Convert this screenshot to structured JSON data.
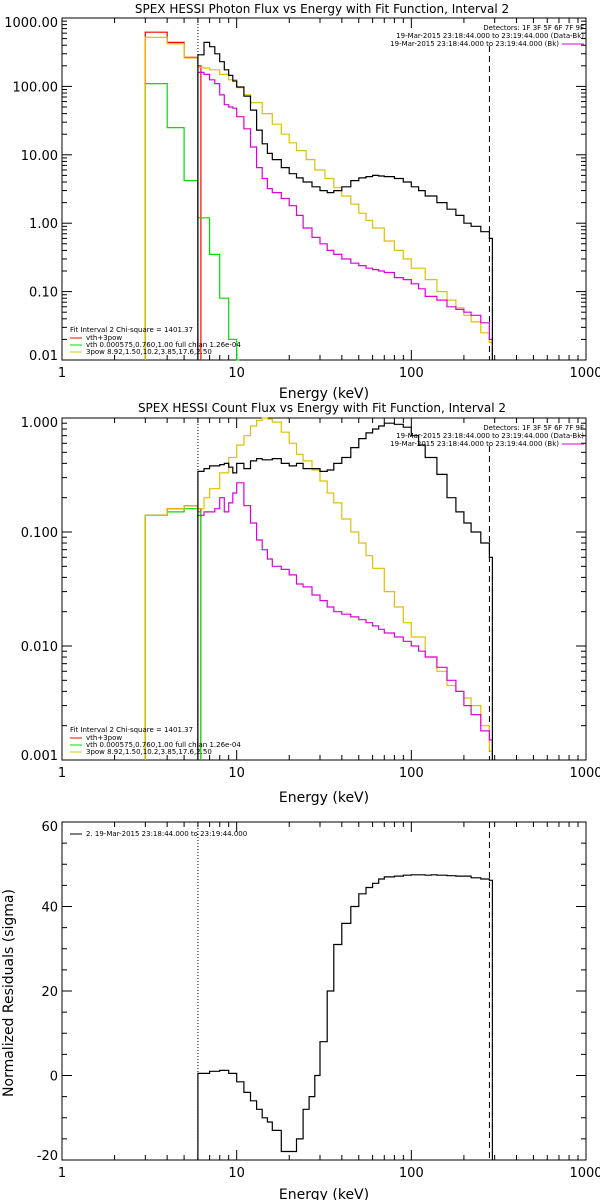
{
  "colors": {
    "background": "#ffffff",
    "data": "#000000",
    "total": "#ff0000",
    "vth": "#00dd00",
    "3pow": "#e0c000",
    "bk": "#dd00dd"
  },
  "chart_data": [
    {
      "type": "line",
      "title": "SPEX HESSI Photon Flux vs Energy with Fit Function, Interval 2",
      "xlabel": "Energy (keV)",
      "ylabel": "",
      "xscale": "log",
      "yscale": "log",
      "xlim": [
        1,
        1000
      ],
      "ylim": [
        0.01,
        1000
      ],
      "xtick_labels": [
        "1",
        "10",
        "100",
        "1000"
      ],
      "ytick_values": [
        0.01,
        0.1,
        1,
        10,
        100,
        1000
      ],
      "ytick_labels": [
        "0.01",
        "0.10",
        "1.00",
        "10.00",
        "100.00",
        "1000.00"
      ],
      "info_right": [
        "Detectors: 1F 3F 5F 6F 7F 9F",
        "19-Mar-2015 23:18:44.000 to 23:19:44.000 (Data-Bk)",
        "19-Mar-2015 23:18:44.000 to 23:19:44.000 (Bk)"
      ],
      "legend": [
        "Fit Interval  2    Chi-square = 1401.37",
        "vth+3pow",
        "vth 0.000575,0.760,1.00  full chian 1.26e-04",
        "3pow 8.92,1.50,10.2,3.85,17.6,2.50"
      ],
      "series": [
        {
          "name": "Data-Bk",
          "color": "#000000",
          "x": [
            6.0,
            6.5,
            7.0,
            7.5,
            8.0,
            8.5,
            9.0,
            9.5,
            10,
            11,
            12,
            13,
            14,
            15,
            16,
            18,
            20,
            22,
            24,
            27,
            30,
            33,
            36,
            40,
            45,
            50,
            55,
            60,
            65,
            70,
            80,
            90,
            100,
            110,
            120,
            140,
            160,
            180,
            200,
            220,
            250,
            280
          ],
          "y": [
            290,
            440,
            380,
            300,
            230,
            175,
            145,
            120,
            98,
            72,
            45,
            23,
            14.5,
            10.5,
            8.5,
            6.5,
            5.3,
            4.6,
            4.0,
            3.4,
            3.0,
            2.8,
            3.0,
            3.4,
            4.2,
            4.6,
            4.8,
            5.0,
            4.9,
            4.8,
            4.5,
            4.0,
            3.4,
            3.0,
            2.5,
            2.0,
            1.6,
            1.3,
            1.0,
            0.9,
            0.75,
            0.6
          ]
        },
        {
          "name": "Bk",
          "color": "#dd00dd",
          "x": [
            6.0,
            6.5,
            7.0,
            7.5,
            8.0,
            8.5,
            9.0,
            9.5,
            10,
            11,
            12,
            13,
            14,
            15,
            16,
            18,
            20,
            22,
            24,
            27,
            30,
            33,
            36,
            40,
            45,
            50,
            55,
            60,
            65,
            70,
            80,
            90,
            100,
            110,
            120,
            140,
            160,
            180,
            200,
            220,
            250,
            280
          ],
          "y": [
            160,
            150,
            125,
            110,
            75,
            54,
            50,
            48,
            36,
            24,
            13,
            6.5,
            4.5,
            3.2,
            2.8,
            2.3,
            1.8,
            1.3,
            0.85,
            0.62,
            0.5,
            0.4,
            0.35,
            0.3,
            0.26,
            0.24,
            0.22,
            0.21,
            0.2,
            0.19,
            0.16,
            0.15,
            0.13,
            0.11,
            0.085,
            0.075,
            0.06,
            0.055,
            0.05,
            0.045,
            0.035,
            0.02
          ]
        },
        {
          "name": "3pow",
          "color": "#e0c000",
          "x": [
            3,
            4,
            5,
            6,
            6.5,
            7,
            8,
            9,
            10,
            11,
            12,
            14,
            16,
            18,
            20,
            22,
            25,
            28,
            32,
            36,
            40,
            45,
            50,
            55,
            60,
            70,
            80,
            90,
            100,
            120,
            140,
            160,
            180,
            200,
            220,
            250,
            280
          ],
          "y": [
            520,
            420,
            260,
            190,
            185,
            175,
            150,
            125,
            96,
            75,
            58,
            40,
            28,
            20,
            15,
            11.5,
            8.5,
            6.0,
            4.5,
            3.3,
            2.5,
            1.9,
            1.4,
            1.1,
            0.85,
            0.55,
            0.4,
            0.3,
            0.22,
            0.15,
            0.1,
            0.075,
            0.058,
            0.045,
            0.036,
            0.025,
            0.018
          ]
        },
        {
          "name": "vth",
          "color": "#00dd00",
          "x": [
            3,
            4,
            5,
            6,
            7,
            8,
            9,
            10
          ],
          "y": [
            110,
            25,
            4.2,
            1.2,
            0.35,
            0.08,
            0.02,
            0.005
          ]
        },
        {
          "name": "vth+3pow",
          "color": "#ff0000",
          "x": [
            3,
            4,
            5,
            6
          ],
          "y": [
            620,
            440,
            265,
            200
          ]
        }
      ]
    },
    {
      "type": "line",
      "title": "SPEX HESSI Count Flux vs Energy with Fit Function, Interval 2",
      "xlabel": "Energy (keV)",
      "ylabel": "",
      "xscale": "log",
      "yscale": "log",
      "xlim": [
        1,
        1000
      ],
      "ylim": [
        0.001,
        1.0
      ],
      "xtick_labels": [
        "1",
        "10",
        "100",
        "1000"
      ],
      "ytick_values": [
        0.001,
        0.01,
        0.1,
        1.0
      ],
      "ytick_labels": [
        "0.001",
        "0.010",
        "0.100",
        "1.000"
      ],
      "info_right": [
        "Detectors: 1F 3F 5F 6F 7F 9F",
        "19-Mar-2015 23:18:44.000 to 23:19:44.000 (Data-Bk)",
        "19-Mar-2015 23:18:44.000 to 23:19:44.000 (Bk)"
      ],
      "legend": [
        "Fit Interval  2    Chi-square = 1401.37",
        "vth+3pow",
        "vth 0.000575,0.760,1.00  full chian 1.26e-04",
        "3pow 8.92,1.50,10.2,3.85,17.6,2.50"
      ],
      "series": [
        {
          "name": "Data-Bk",
          "color": "#000000",
          "x": [
            6.0,
            6.5,
            7.0,
            7.5,
            8.0,
            8.5,
            9.0,
            9.5,
            10,
            11,
            12,
            13,
            14,
            15,
            16,
            18,
            20,
            22,
            24,
            27,
            30,
            33,
            36,
            40,
            45,
            50,
            55,
            60,
            65,
            70,
            80,
            90,
            100,
            110,
            120,
            140,
            160,
            180,
            200,
            220,
            250,
            280
          ],
          "y": [
            0.34,
            0.36,
            0.38,
            0.38,
            0.39,
            0.4,
            0.37,
            0.33,
            0.4,
            0.36,
            0.42,
            0.44,
            0.43,
            0.43,
            0.44,
            0.4,
            0.38,
            0.4,
            0.36,
            0.36,
            0.34,
            0.35,
            0.4,
            0.45,
            0.55,
            0.66,
            0.74,
            0.8,
            0.85,
            0.9,
            0.88,
            0.83,
            0.7,
            0.58,
            0.45,
            0.32,
            0.2,
            0.15,
            0.12,
            0.1,
            0.08,
            0.06
          ]
        },
        {
          "name": "Bk",
          "color": "#dd00dd",
          "x": [
            6.0,
            6.5,
            7.0,
            7.5,
            8.0,
            8.5,
            9.0,
            9.5,
            10,
            11,
            12,
            13,
            14,
            15,
            16,
            18,
            20,
            22,
            24,
            27,
            30,
            33,
            36,
            40,
            45,
            50,
            55,
            60,
            65,
            70,
            80,
            90,
            100,
            110,
            120,
            140,
            160,
            180,
            200,
            220,
            250,
            280
          ],
          "y": [
            0.14,
            0.15,
            0.15,
            0.16,
            0.2,
            0.15,
            0.18,
            0.22,
            0.27,
            0.17,
            0.12,
            0.085,
            0.07,
            0.058,
            0.05,
            0.047,
            0.042,
            0.035,
            0.033,
            0.028,
            0.025,
            0.022,
            0.02,
            0.019,
            0.018,
            0.017,
            0.016,
            0.015,
            0.014,
            0.013,
            0.012,
            0.011,
            0.01,
            0.009,
            0.008,
            0.0065,
            0.005,
            0.004,
            0.003,
            0.0025,
            0.0018,
            0.0015
          ]
        },
        {
          "name": "3pow",
          "color": "#e0c000",
          "x": [
            3,
            4,
            5,
            6,
            6.5,
            7,
            8,
            9,
            10,
            11,
            12,
            13,
            14,
            15,
            16,
            18,
            20,
            22,
            24,
            27,
            30,
            33,
            36,
            40,
            45,
            50,
            55,
            60,
            70,
            80,
            90,
            100,
            120,
            140,
            160,
            180,
            200,
            220,
            250,
            280
          ],
          "y": [
            0.14,
            0.16,
            0.17,
            0.16,
            0.2,
            0.24,
            0.33,
            0.45,
            0.58,
            0.7,
            0.85,
            0.95,
            1.0,
            0.98,
            0.92,
            0.75,
            0.6,
            0.48,
            0.42,
            0.35,
            0.28,
            0.22,
            0.18,
            0.13,
            0.1,
            0.08,
            0.062,
            0.048,
            0.03,
            0.022,
            0.016,
            0.012,
            0.008,
            0.006,
            0.0045,
            0.004,
            0.0035,
            0.003,
            0.002,
            0.0012
          ]
        },
        {
          "name": "vth",
          "color": "#00dd00",
          "x": [
            3,
            4,
            5,
            6
          ],
          "y": [
            0.14,
            0.15,
            0.16,
            0.15
          ]
        },
        {
          "name": "vth+3pow",
          "color": "#ff0000",
          "x": [
            3,
            4,
            5,
            6
          ],
          "y": [
            0.14,
            0.16,
            0.17,
            0.16
          ]
        }
      ]
    },
    {
      "type": "line",
      "title": "",
      "xlabel": "Energy (keV)",
      "ylabel": "Normalized Residuals (sigma)",
      "xscale": "log",
      "yscale": "linear",
      "xlim": [
        1,
        1000
      ],
      "ylim": [
        -20,
        60
      ],
      "xtick_labels": [
        "1",
        "10",
        "100",
        "1000"
      ],
      "ytick_values": [
        -20,
        0,
        20,
        40,
        60
      ],
      "ytick_labels": [
        "-20",
        "0",
        "20",
        "40",
        "60"
      ],
      "legend": [
        "2. 19-Mar-2015 23:18:44.000 to 23:19:44.000"
      ],
      "series": [
        {
          "name": "2. 19-Mar-2015 23:18:44.000 to 23:19:44.000",
          "color": "#000000",
          "x": [
            6,
            7,
            8,
            9,
            10,
            11,
            12,
            13,
            14,
            15,
            16,
            18,
            20,
            22,
            24,
            26,
            28,
            30,
            33,
            36,
            40,
            45,
            50,
            55,
            60,
            65,
            70,
            80,
            90,
            100,
            110,
            120,
            130,
            140,
            160,
            180,
            200,
            220,
            250,
            280
          ],
          "y": [
            0.5,
            1.0,
            1.2,
            0.5,
            -1.5,
            -4.0,
            -6.0,
            -8.0,
            -10,
            -11,
            -13,
            -18,
            -18,
            -15,
            -8,
            -5,
            0,
            8,
            20,
            31,
            36,
            40,
            43,
            44.5,
            45.5,
            46.5,
            47,
            47.2,
            47.4,
            47.5,
            47.5,
            47.4,
            47.5,
            47.4,
            47.3,
            47.2,
            47.2,
            46.8,
            46.5,
            46.2
          ]
        }
      ]
    }
  ]
}
